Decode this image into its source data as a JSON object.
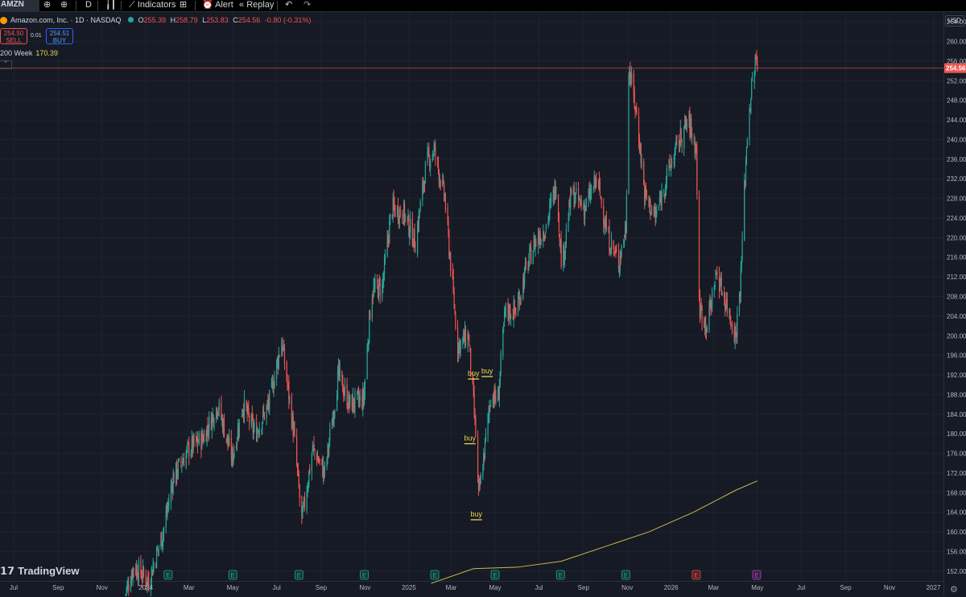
{
  "toolbar": {
    "symbol": "AMZN",
    "interval": "D",
    "indicators_label": "Indicators",
    "alert_label": "Alert",
    "replay_label": "Replay"
  },
  "legend": {
    "title": "Amazon.com, Inc. · 1D · NASDAQ",
    "open_label": "O",
    "open": "255.39",
    "high_label": "H",
    "high": "258.79",
    "low_label": "L",
    "low": "253.83",
    "close_label": "C",
    "close": "254.56",
    "change": "-0.80 (-0.31%)"
  },
  "trade": {
    "sell_price": "254.50",
    "sell_label": "SELL",
    "spread": "0.01",
    "buy_price": "254.51",
    "buy_label": "BUY"
  },
  "indicator": {
    "name": "200 Week",
    "value": "170.39"
  },
  "currency": "USD",
  "brand": "TradingView",
  "colors": {
    "up": "#26a69a",
    "down": "#ef5350",
    "ma": "#c9b84a",
    "signal": "#f0d34f",
    "last_price": "#ef5350",
    "background": "#161a25"
  },
  "chart_data": {
    "type": "candlestick",
    "y_unit": "USD",
    "ylim": [
      150,
      266
    ],
    "y_ticks": [
      152,
      156,
      160,
      164,
      168,
      172,
      176,
      180,
      184,
      188,
      192,
      196,
      200,
      204,
      208,
      212,
      216,
      220,
      224,
      228,
      232,
      236,
      240,
      244,
      248,
      252,
      256,
      260,
      264
    ],
    "y_tick_labels": [
      "152.00",
      "156.00",
      "160.00",
      "164.00",
      "168.00",
      "172.00",
      "176.00",
      "180.00",
      "184.00",
      "188.00",
      "192.00",
      "196.00",
      "200.00",
      "204.00",
      "208.00",
      "212.00",
      "216.00",
      "220.00",
      "224.00",
      "228.00",
      "232.00",
      "236.00",
      "240.00",
      "244.00",
      "248.00",
      "252.00",
      "256.00",
      "260.00",
      "264.00"
    ],
    "x_range": [
      "2023-06-12",
      "2027-01-15"
    ],
    "x_ticks": [
      {
        "date": "2023-07-01",
        "label": "Jul"
      },
      {
        "date": "2023-09-01",
        "label": "Sep"
      },
      {
        "date": "2023-11-01",
        "label": "Nov"
      },
      {
        "date": "2024-01-01",
        "label": "2024"
      },
      {
        "date": "2024-03-01",
        "label": "Mar"
      },
      {
        "date": "2024-05-01",
        "label": "May"
      },
      {
        "date": "2024-07-01",
        "label": "Jul"
      },
      {
        "date": "2024-09-01",
        "label": "Sep"
      },
      {
        "date": "2024-11-01",
        "label": "Nov"
      },
      {
        "date": "2025-01-01",
        "label": "2025"
      },
      {
        "date": "2025-03-01",
        "label": "Mar"
      },
      {
        "date": "2025-05-01",
        "label": "May"
      },
      {
        "date": "2025-07-01",
        "label": "Jul"
      },
      {
        "date": "2025-09-01",
        "label": "Sep"
      },
      {
        "date": "2025-11-01",
        "label": "Nov"
      },
      {
        "date": "2026-01-01",
        "label": "2026"
      },
      {
        "date": "2026-03-01",
        "label": "Mar"
      },
      {
        "date": "2026-05-01",
        "label": "May"
      },
      {
        "date": "2026-07-01",
        "label": "Jul"
      },
      {
        "date": "2026-09-01",
        "label": "Sep"
      },
      {
        "date": "2026-11-01",
        "label": "Nov"
      },
      {
        "date": "2027-01-01",
        "label": "2027"
      }
    ],
    "last_price": 254.56,
    "last_price_label": "254.56",
    "price_path": [
      [
        "2023-12-01",
        146
      ],
      [
        "2023-12-15",
        153
      ],
      [
        "2024-01-05",
        150
      ],
      [
        "2024-01-25",
        160
      ],
      [
        "2024-02-08",
        171
      ],
      [
        "2024-03-01",
        177
      ],
      [
        "2024-03-20",
        179
      ],
      [
        "2024-04-10",
        186
      ],
      [
        "2024-04-30",
        175
      ],
      [
        "2024-05-15",
        186
      ],
      [
        "2024-06-01",
        180
      ],
      [
        "2024-06-20",
        186
      ],
      [
        "2024-07-08",
        199
      ],
      [
        "2024-07-25",
        180
      ],
      [
        "2024-08-05",
        162
      ],
      [
        "2024-08-20",
        177
      ],
      [
        "2024-09-06",
        172
      ],
      [
        "2024-09-25",
        192
      ],
      [
        "2024-10-10",
        186
      ],
      [
        "2024-10-30",
        187
      ],
      [
        "2024-11-10",
        209
      ],
      [
        "2024-11-25",
        210
      ],
      [
        "2024-12-08",
        226
      ],
      [
        "2024-12-25",
        225
      ],
      [
        "2025-01-10",
        219
      ],
      [
        "2025-01-25",
        235
      ],
      [
        "2025-02-05",
        238
      ],
      [
        "2025-02-20",
        228
      ],
      [
        "2025-03-10",
        198
      ],
      [
        "2025-03-25",
        200
      ],
      [
        "2025-04-05",
        178
      ],
      [
        "2025-04-08",
        167
      ],
      [
        "2025-04-15",
        175
      ],
      [
        "2025-04-25",
        188
      ],
      [
        "2025-05-05",
        187
      ],
      [
        "2025-05-15",
        205
      ],
      [
        "2025-05-30",
        205
      ],
      [
        "2025-06-12",
        213
      ],
      [
        "2025-06-25",
        219
      ],
      [
        "2025-07-10",
        222
      ],
      [
        "2025-07-25",
        231
      ],
      [
        "2025-08-02",
        214
      ],
      [
        "2025-08-15",
        229
      ],
      [
        "2025-09-03",
        226
      ],
      [
        "2025-09-20",
        232
      ],
      [
        "2025-10-05",
        220
      ],
      [
        "2025-10-20",
        215
      ],
      [
        "2025-10-30",
        222
      ],
      [
        "2025-11-03",
        255
      ],
      [
        "2025-11-15",
        244
      ],
      [
        "2025-11-25",
        229
      ],
      [
        "2025-12-10",
        224
      ],
      [
        "2025-12-25",
        232
      ],
      [
        "2026-01-10",
        239
      ],
      [
        "2026-01-25",
        244
      ],
      [
        "2026-02-05",
        238
      ],
      [
        "2026-02-09",
        206
      ],
      [
        "2026-02-20",
        202
      ],
      [
        "2026-03-05",
        213
      ],
      [
        "2026-03-20",
        206
      ],
      [
        "2026-04-01",
        200
      ],
      [
        "2026-04-08",
        212
      ],
      [
        "2026-04-13",
        230
      ],
      [
        "2026-04-18",
        244
      ],
      [
        "2026-04-28",
        256
      ],
      [
        "2026-05-01",
        254.56
      ]
    ],
    "ma_200_week": [
      [
        "2025-02-01",
        149.5
      ],
      [
        "2025-04-01",
        152.5
      ],
      [
        "2025-06-01",
        152.8
      ],
      [
        "2025-08-01",
        154.0
      ],
      [
        "2025-10-01",
        157.0
      ],
      [
        "2025-12-01",
        160.0
      ],
      [
        "2026-02-01",
        164.0
      ],
      [
        "2026-04-01",
        168.5
      ],
      [
        "2026-05-01",
        170.39
      ]
    ],
    "signals": [
      {
        "label": "buy",
        "date": "2025-04-01",
        "price": 191.5
      },
      {
        "label": "buy",
        "date": "2025-04-20",
        "price": 192.0
      },
      {
        "label": "buy",
        "date": "2025-03-27",
        "price": 178.3
      },
      {
        "label": "buy",
        "date": "2025-04-05",
        "price": 162.8
      }
    ],
    "earnings_marker_label": "E",
    "earnings": [
      {
        "date": "2024-02-01",
        "type": "up"
      },
      {
        "date": "2024-05-01",
        "type": "up"
      },
      {
        "date": "2024-08-01",
        "type": "up"
      },
      {
        "date": "2024-10-31",
        "type": "up"
      },
      {
        "date": "2025-02-06",
        "type": "up"
      },
      {
        "date": "2025-05-01",
        "type": "up"
      },
      {
        "date": "2025-07-31",
        "type": "up"
      },
      {
        "date": "2025-10-30",
        "type": "up"
      },
      {
        "date": "2026-02-05",
        "type": "down"
      },
      {
        "date": "2026-04-30",
        "type": "upcoming"
      }
    ]
  }
}
